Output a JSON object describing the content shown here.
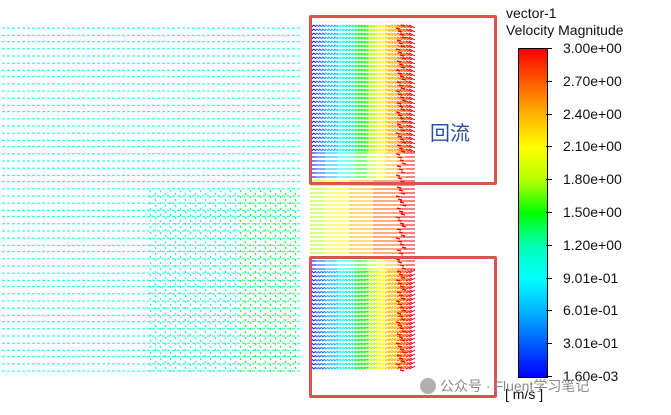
{
  "annotation": {
    "label": "回流"
  },
  "legend": {
    "name": "vector-1",
    "quantity": "Velocity Magnitude",
    "units": "[ m/s ]",
    "ticks": [
      "3.00e+00",
      "2.70e+00",
      "2.40e+00",
      "2.10e+00",
      "1.80e+00",
      "1.50e+00",
      "1.20e+00",
      "9.01e-01",
      "6.01e-01",
      "3.01e-01",
      "1.60e-03"
    ]
  },
  "colormap": [
    "#0000ff",
    "#005aff",
    "#00b4ff",
    "#00ffff",
    "#00ffb4",
    "#00ff00",
    "#b4ff00",
    "#ffff00",
    "#ffb400",
    "#ff5a00",
    "#ff0000"
  ],
  "annotation_color": "#d9534f",
  "watermark": {
    "text": "公众号 · Fluent学习笔记"
  }
}
